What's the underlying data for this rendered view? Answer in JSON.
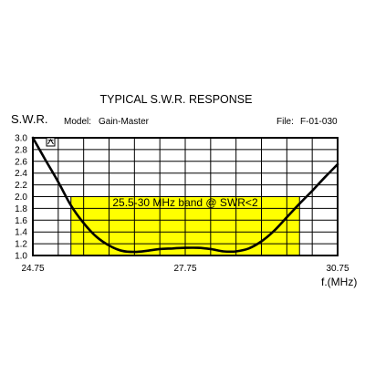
{
  "header": {
    "title": "TYPICAL S.W.R. RESPONSE",
    "y_axis_label": "S.W.R.",
    "model_label": "Model:",
    "model_value": "Gain-Master",
    "file_label": "File:",
    "file_value": "F-01-030",
    "x_axis_label": "f.(MHz)"
  },
  "colors": {
    "band": "#ffff00",
    "curve": "#000000",
    "grid": "#000000"
  },
  "chart_data": {
    "type": "line",
    "title": "TYPICAL S.W.R. RESPONSE",
    "xlabel": "f.(MHz)",
    "ylabel": "S.W.R.",
    "xlim": [
      24.75,
      30.75
    ],
    "ylim": [
      1.0,
      3.0
    ],
    "y_ticks": [
      "3.0",
      "2.8",
      "2.6",
      "2.4",
      "2.2",
      "2.0",
      "1.8",
      "1.6",
      "1.4",
      "1.2",
      "1.0"
    ],
    "x_ticks": [
      "24.75",
      "27.75",
      "30.75"
    ],
    "x_ticks_values": [
      24.75,
      27.75,
      30.75
    ],
    "grid": true,
    "x_grid_step": 0.5,
    "y_grid_step": 0.2,
    "band": {
      "x_start": 25.5,
      "x_end": 30.0,
      "y_max": 2.0
    },
    "annotation": "25.5-30 MHz band @ SWR<2",
    "series": [
      {
        "x": [
          24.75,
          25.0,
          25.25,
          25.5,
          25.75,
          26.0,
          26.25,
          26.5,
          26.75,
          27.0,
          27.25,
          27.5,
          27.75,
          28.0,
          28.25,
          28.5,
          28.75,
          29.0,
          29.25,
          29.5,
          29.75,
          30.0,
          30.25,
          30.5,
          30.75
        ],
        "y": [
          3.0,
          2.62,
          2.25,
          1.85,
          1.55,
          1.32,
          1.17,
          1.08,
          1.06,
          1.08,
          1.11,
          1.12,
          1.13,
          1.13,
          1.11,
          1.07,
          1.07,
          1.12,
          1.24,
          1.42,
          1.65,
          1.88,
          2.1,
          2.33,
          2.55
        ]
      }
    ]
  }
}
